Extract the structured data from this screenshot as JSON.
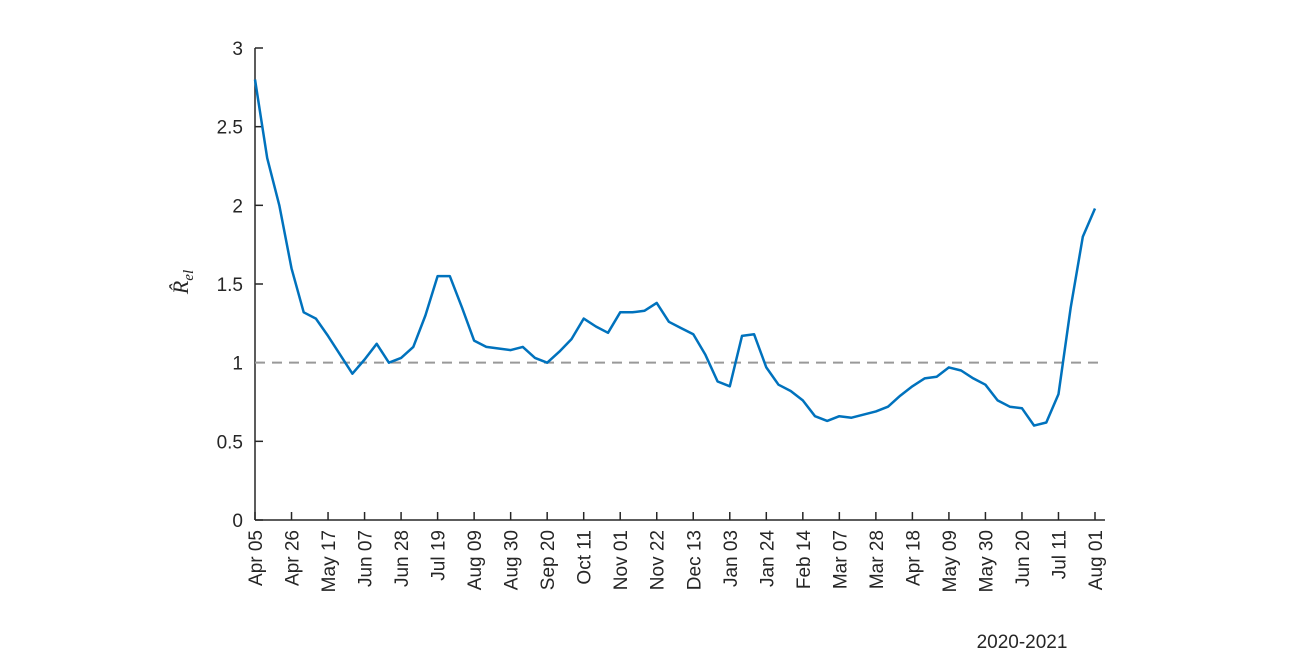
{
  "chart_data": {
    "type": "line",
    "xlabel": "2020-2021",
    "ylabel": "R̂",
    "ylabel_sub": "el",
    "categories": [
      "Apr 05",
      null,
      null,
      "Apr 26",
      null,
      null,
      "May 17",
      null,
      null,
      "Jun 07",
      null,
      null,
      "Jun 28",
      null,
      null,
      "Jul 19",
      null,
      null,
      "Aug 09",
      null,
      null,
      "Aug 30",
      null,
      null,
      "Sep 20",
      null,
      null,
      "Oct 11",
      null,
      null,
      "Nov 01",
      null,
      null,
      "Nov 22",
      null,
      null,
      "Dec 13",
      null,
      null,
      "Jan 03",
      null,
      null,
      "Jan 24",
      null,
      null,
      "Feb 14",
      null,
      null,
      "Mar 07",
      null,
      null,
      "Mar 28",
      null,
      null,
      "Apr 18",
      null,
      null,
      "May 09",
      null,
      null,
      "May 30",
      null,
      null,
      "Jun 20",
      null,
      null,
      "Jul 11",
      null,
      null,
      "Aug 01"
    ],
    "series": [
      {
        "name": "R_el",
        "color": "#0072bd",
        "values": [
          2.8,
          2.3,
          2.0,
          1.6,
          1.32,
          1.28,
          1.17,
          1.05,
          0.93,
          1.02,
          1.12,
          1.0,
          1.03,
          1.1,
          1.3,
          1.55,
          1.55,
          1.35,
          1.14,
          1.1,
          1.09,
          1.08,
          1.1,
          1.03,
          1.0,
          1.07,
          1.15,
          1.28,
          1.23,
          1.19,
          1.32,
          1.32,
          1.33,
          1.38,
          1.26,
          1.22,
          1.18,
          1.05,
          0.88,
          0.85,
          1.17,
          1.18,
          0.97,
          0.86,
          0.82,
          0.76,
          0.66,
          0.63,
          0.66,
          0.65,
          0.67,
          0.69,
          0.72,
          0.79,
          0.85,
          0.9,
          0.91,
          0.97,
          0.95,
          0.9,
          0.86,
          0.76,
          0.72,
          0.71,
          0.6,
          0.62,
          0.8,
          1.35,
          1.8,
          1.98
        ]
      }
    ],
    "ylim": [
      0,
      3
    ],
    "yticks": [
      0,
      0.5,
      1,
      1.5,
      2,
      2.5,
      3
    ],
    "reference_line": {
      "value": 1,
      "color": "#999999"
    },
    "grid": false
  }
}
